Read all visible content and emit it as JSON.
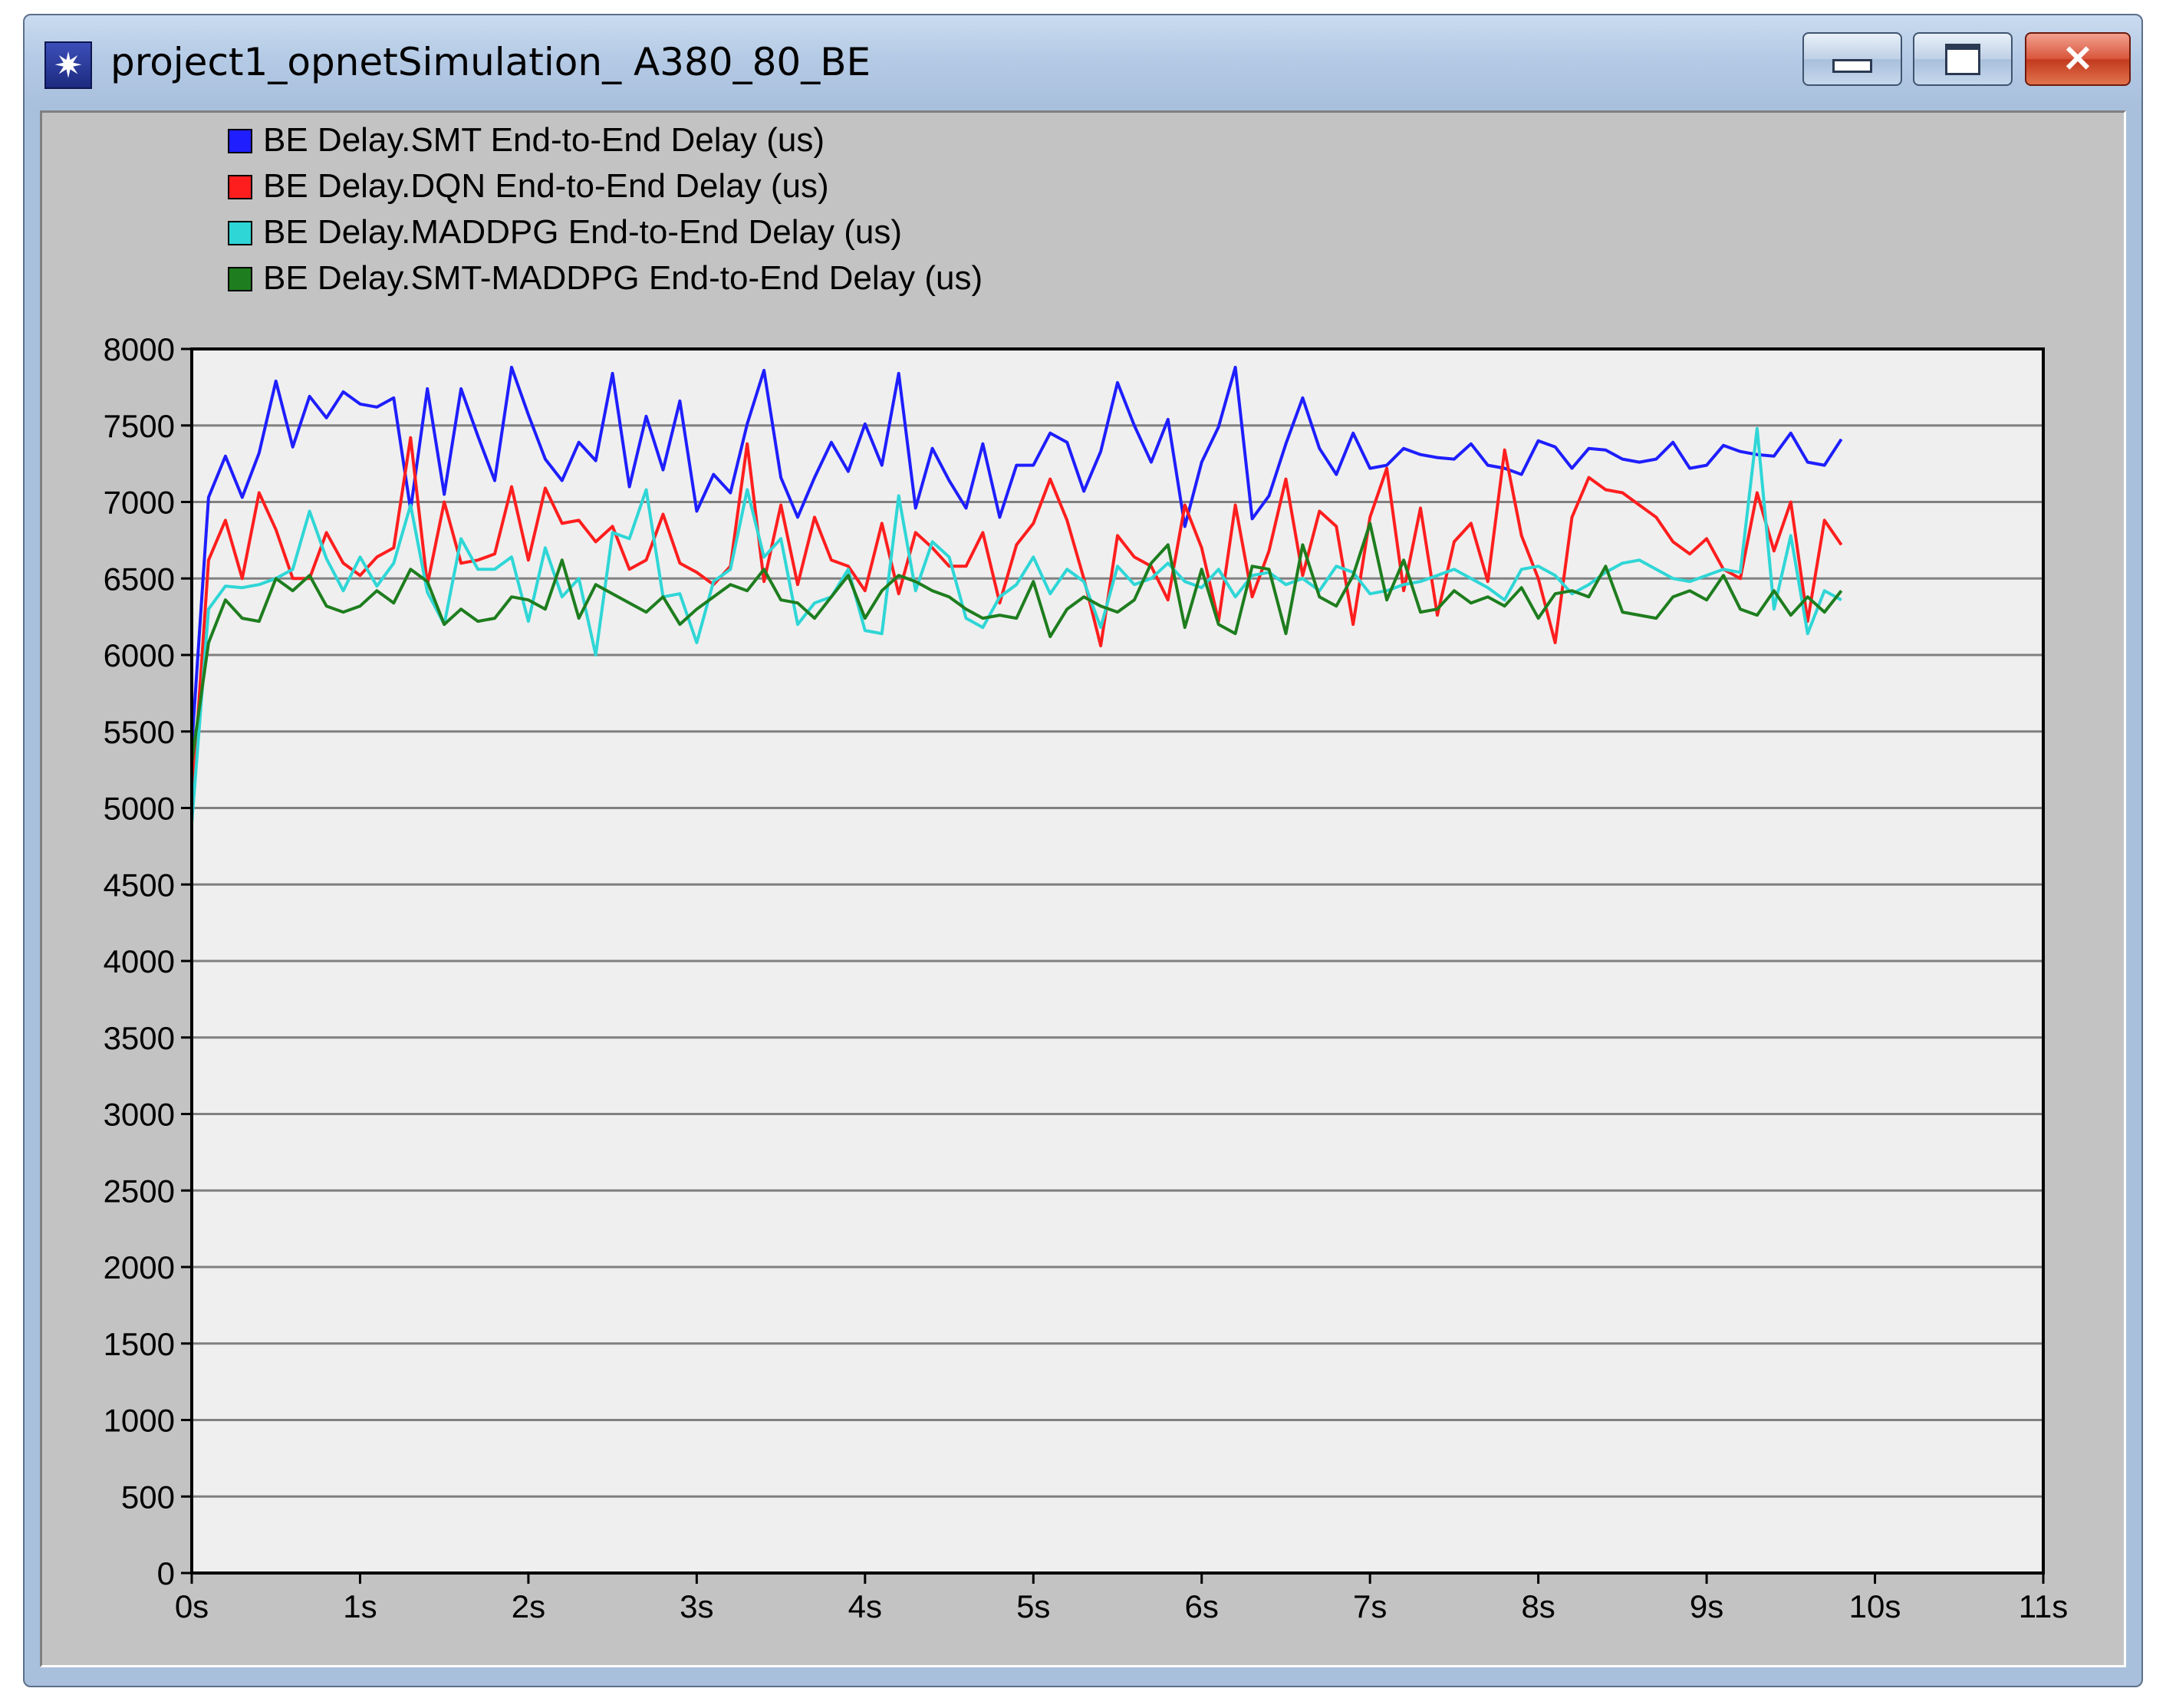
{
  "window": {
    "title": "project1_opnetSimulation_ A380_80_BE",
    "buttons": {
      "minimize": "minimize",
      "maximize": "restore",
      "close": "✕"
    }
  },
  "colors": {
    "plot_background": "#efefef",
    "panel_background": "#c3c3c3",
    "gridline": "#808080"
  },
  "chart_data": {
    "type": "line",
    "title": "",
    "xlabel": "",
    "ylabel": "",
    "xlim": [
      0,
      11
    ],
    "ylim": [
      0,
      8000
    ],
    "grid": true,
    "legend_position": "top-left",
    "x_tick_labels": [
      "0s",
      "1s",
      "2s",
      "3s",
      "4s",
      "5s",
      "6s",
      "7s",
      "8s",
      "9s",
      "10s",
      "11s"
    ],
    "y_tick_labels": [
      "0",
      "500",
      "1000",
      "1500",
      "2000",
      "2500",
      "3000",
      "3500",
      "4000",
      "4500",
      "5000",
      "5500",
      "6000",
      "6500",
      "7000",
      "7500",
      "8000"
    ],
    "x": [
      0,
      0.1,
      0.2,
      0.3,
      0.4,
      0.5,
      0.6,
      0.7,
      0.8,
      0.9,
      1.0,
      1.1,
      1.2,
      1.3,
      1.4,
      1.5,
      1.6,
      1.7,
      1.8,
      1.9,
      2.0,
      2.1,
      2.2,
      2.3,
      2.4,
      2.5,
      2.6,
      2.7,
      2.8,
      2.9,
      3.0,
      3.1,
      3.2,
      3.3,
      3.4,
      3.5,
      3.6,
      3.7,
      3.8,
      3.9,
      4.0,
      4.1,
      4.2,
      4.3,
      4.4,
      4.5,
      4.6,
      4.7,
      4.8,
      4.9,
      5.0,
      5.1,
      5.2,
      5.3,
      5.4,
      5.5,
      5.6,
      5.7,
      5.8,
      5.9,
      6.0,
      6.1,
      6.2,
      6.3,
      6.4,
      6.5,
      6.6,
      6.7,
      6.8,
      6.9,
      7.0,
      7.1,
      7.2,
      7.3,
      7.4,
      7.5,
      7.6,
      7.7,
      7.8,
      7.9,
      8.0,
      8.1,
      8.2,
      8.3,
      8.4,
      8.5,
      8.6,
      8.7,
      8.8,
      8.9,
      9.0,
      9.1,
      9.2,
      9.3,
      9.4,
      9.5,
      9.6,
      9.7,
      9.8
    ],
    "series": [
      {
        "name": "BE Delay.SMT End-to-End Delay (us)",
        "color": "#1e1eff",
        "values": [
          5400,
          7030,
          7300,
          7030,
          7320,
          7790,
          7360,
          7690,
          7550,
          7720,
          7640,
          7620,
          7680,
          6950,
          7740,
          7050,
          7740,
          7430,
          7140,
          7880,
          7570,
          7280,
          7140,
          7390,
          7270,
          7840,
          7100,
          7560,
          7210,
          7660,
          6940,
          7180,
          7060,
          7510,
          7860,
          7160,
          6900,
          7160,
          7390,
          7200,
          7510,
          7240,
          7840,
          6960,
          7350,
          7140,
          6960,
          7380,
          6900,
          7240,
          7240,
          7450,
          7390,
          7070,
          7330,
          7780,
          7500,
          7260,
          7540,
          6840,
          7260,
          7490,
          7880,
          6890,
          7040,
          7380,
          7680,
          7350,
          7180,
          7450,
          7220,
          7240,
          7350,
          7310,
          7290,
          7280,
          7380,
          7240,
          7220,
          7180,
          7400,
          7360,
          7220,
          7350,
          7340,
          7280,
          7260,
          7280,
          7390,
          7220,
          7240,
          7370,
          7330,
          7310,
          7300,
          7450,
          7260,
          7240,
          7410
        ]
      },
      {
        "name": "BE Delay.DQN End-to-End Delay (us)",
        "color": "#ff1e1e",
        "values": [
          5000,
          6620,
          6880,
          6500,
          7060,
          6820,
          6500,
          6500,
          6800,
          6600,
          6520,
          6640,
          6700,
          7420,
          6460,
          7000,
          6600,
          6620,
          6660,
          7100,
          6620,
          7090,
          6860,
          6880,
          6740,
          6840,
          6560,
          6620,
          6920,
          6600,
          6540,
          6460,
          6580,
          7380,
          6480,
          6980,
          6460,
          6900,
          6620,
          6580,
          6420,
          6860,
          6400,
          6800,
          6700,
          6580,
          6580,
          6800,
          6340,
          6720,
          6860,
          7150,
          6880,
          6500,
          6060,
          6780,
          6640,
          6580,
          6360,
          6980,
          6700,
          6220,
          6980,
          6380,
          6680,
          7150,
          6520,
          6940,
          6840,
          6200,
          6900,
          7220,
          6420,
          6960,
          6260,
          6740,
          6860,
          6480,
          7340,
          6780,
          6500,
          6080,
          6900,
          7160,
          7080,
          7060,
          6980,
          6900,
          6740,
          6660,
          6760,
          6560,
          6500,
          7060,
          6680,
          7000,
          6220,
          6880,
          6720
        ]
      },
      {
        "name": "BE Delay.MADDPG End-to-End Delay (us)",
        "color": "#2fd6d6",
        "values": [
          4900,
          6300,
          6450,
          6440,
          6460,
          6500,
          6560,
          6940,
          6630,
          6420,
          6640,
          6450,
          6600,
          6980,
          6410,
          6200,
          6760,
          6560,
          6560,
          6640,
          6220,
          6700,
          6380,
          6500,
          6000,
          6800,
          6760,
          7080,
          6380,
          6400,
          6080,
          6480,
          6560,
          7080,
          6640,
          6760,
          6200,
          6340,
          6380,
          6560,
          6160,
          6140,
          7040,
          6420,
          6740,
          6640,
          6240,
          6180,
          6380,
          6460,
          6640,
          6400,
          6560,
          6480,
          6180,
          6580,
          6460,
          6500,
          6600,
          6480,
          6440,
          6560,
          6380,
          6520,
          6540,
          6460,
          6500,
          6420,
          6580,
          6540,
          6400,
          6420,
          6460,
          6480,
          6520,
          6560,
          6500,
          6440,
          6360,
          6560,
          6580,
          6520,
          6400,
          6460,
          6540,
          6600,
          6620,
          6560,
          6500,
          6480,
          6520,
          6560,
          6540,
          7480,
          6300,
          6780,
          6140,
          6420,
          6360
        ]
      },
      {
        "name": "BE Delay.SMT-MADDPG End-to-End Delay (us)",
        "color": "#1e7d1e",
        "values": [
          5300,
          6080,
          6360,
          6240,
          6220,
          6500,
          6420,
          6520,
          6320,
          6280,
          6320,
          6420,
          6340,
          6560,
          6480,
          6200,
          6300,
          6220,
          6240,
          6380,
          6360,
          6300,
          6620,
          6240,
          6460,
          6400,
          6340,
          6280,
          6380,
          6200,
          6300,
          6380,
          6460,
          6420,
          6560,
          6360,
          6340,
          6240,
          6380,
          6520,
          6240,
          6420,
          6520,
          6480,
          6420,
          6380,
          6300,
          6240,
          6260,
          6240,
          6480,
          6120,
          6300,
          6380,
          6320,
          6280,
          6360,
          6600,
          6720,
          6180,
          6560,
          6200,
          6140,
          6580,
          6560,
          6140,
          6720,
          6380,
          6320,
          6520,
          6860,
          6360,
          6620,
          6280,
          6300,
          6420,
          6340,
          6380,
          6320,
          6440,
          6240,
          6400,
          6420,
          6380,
          6580,
          6280,
          6260,
          6240,
          6380,
          6420,
          6360,
          6520,
          6300,
          6260,
          6420,
          6260,
          6380,
          6280,
          6420
        ]
      }
    ]
  }
}
